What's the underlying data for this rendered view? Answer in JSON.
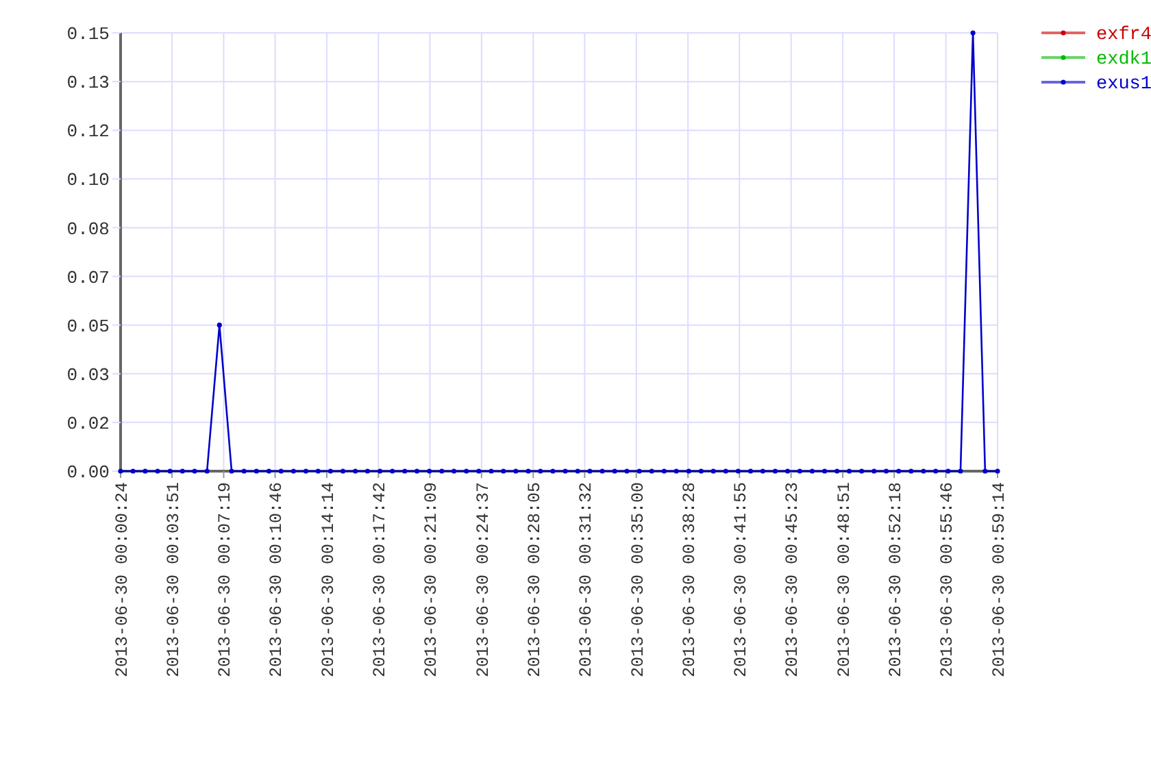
{
  "chart_data": {
    "type": "line",
    "grid": true,
    "legend": "top right",
    "marker": "circle",
    "line_style": "solid",
    "x": [
      "2013-06-30T00:00:24",
      "2013-06-30T00:01:14",
      "2013-06-30T00:02:03",
      "2013-06-30T00:02:53",
      "2013-06-30T00:03:43",
      "2013-06-30T00:04:33",
      "2013-06-30T00:05:22",
      "2013-06-30T00:06:12",
      "2013-06-30T00:07:02",
      "2013-06-30T00:07:51",
      "2013-06-30T00:08:41",
      "2013-06-30T00:09:31",
      "2013-06-30T00:10:21",
      "2013-06-30T00:11:10",
      "2013-06-30T00:12:00",
      "2013-06-30T00:12:50",
      "2013-06-30T00:13:39",
      "2013-06-30T00:14:29",
      "2013-06-30T00:15:19",
      "2013-06-30T00:16:09",
      "2013-06-30T00:16:58",
      "2013-06-30T00:17:48",
      "2013-06-30T00:18:38",
      "2013-06-30T00:19:28",
      "2013-06-30T00:20:17",
      "2013-06-30T00:21:07",
      "2013-06-30T00:21:57",
      "2013-06-30T00:22:46",
      "2013-06-30T00:23:36",
      "2013-06-30T00:24:26",
      "2013-06-30T00:25:16",
      "2013-06-30T00:26:05",
      "2013-06-30T00:26:55",
      "2013-06-30T00:27:45",
      "2013-06-30T00:28:34",
      "2013-06-30T00:29:24",
      "2013-06-30T00:30:14",
      "2013-06-30T00:31:04",
      "2013-06-30T00:31:53",
      "2013-06-30T00:32:43",
      "2013-06-30T00:33:33",
      "2013-06-30T00:34:22",
      "2013-06-30T00:35:12",
      "2013-06-30T00:36:02",
      "2013-06-30T00:36:52",
      "2013-06-30T00:37:41",
      "2013-06-30T00:38:31",
      "2013-06-30T00:39:21",
      "2013-06-30T00:40:10",
      "2013-06-30T00:41:00",
      "2013-06-30T00:41:50",
      "2013-06-30T00:42:40",
      "2013-06-30T00:43:29",
      "2013-06-30T00:44:19",
      "2013-06-30T00:45:09",
      "2013-06-30T00:45:58",
      "2013-06-30T00:46:48",
      "2013-06-30T00:47:38",
      "2013-06-30T00:48:28",
      "2013-06-30T00:49:17",
      "2013-06-30T00:50:07",
      "2013-06-30T00:50:57",
      "2013-06-30T00:51:46",
      "2013-06-30T00:52:36",
      "2013-06-30T00:53:26",
      "2013-06-30T00:54:16",
      "2013-06-30T00:55:05",
      "2013-06-30T00:55:55",
      "2013-06-30T00:56:45",
      "2013-06-30T00:57:35",
      "2013-06-30T00:58:24",
      "2013-06-30T00:59:14"
    ],
    "xlim": [
      "2013-06-30T00:00:24",
      "2013-06-30T00:59:14"
    ],
    "xticks": [
      {
        "value": "2013-06-30T00:00:24",
        "label": "2013-06-30 00:00:24"
      },
      {
        "value": "2013-06-30T00:03:51",
        "label": "2013-06-30 00:03:51"
      },
      {
        "value": "2013-06-30T00:07:19",
        "label": "2013-06-30 00:07:19"
      },
      {
        "value": "2013-06-30T00:10:46",
        "label": "2013-06-30 00:10:46"
      },
      {
        "value": "2013-06-30T00:14:14",
        "label": "2013-06-30 00:14:14"
      },
      {
        "value": "2013-06-30T00:17:42",
        "label": "2013-06-30 00:17:42"
      },
      {
        "value": "2013-06-30T00:21:09",
        "label": "2013-06-30 00:21:09"
      },
      {
        "value": "2013-06-30T00:24:37",
        "label": "2013-06-30 00:24:37"
      },
      {
        "value": "2013-06-30T00:28:05",
        "label": "2013-06-30 00:28:05"
      },
      {
        "value": "2013-06-30T00:31:32",
        "label": "2013-06-30 00:31:32"
      },
      {
        "value": "2013-06-30T00:35:00",
        "label": "2013-06-30 00:35:00"
      },
      {
        "value": "2013-06-30T00:38:28",
        "label": "2013-06-30 00:38:28"
      },
      {
        "value": "2013-06-30T00:41:55",
        "label": "2013-06-30 00:41:55"
      },
      {
        "value": "2013-06-30T00:45:23",
        "label": "2013-06-30 00:45:23"
      },
      {
        "value": "2013-06-30T00:48:51",
        "label": "2013-06-30 00:48:51"
      },
      {
        "value": "2013-06-30T00:52:18",
        "label": "2013-06-30 00:52:18"
      },
      {
        "value": "2013-06-30T00:55:46",
        "label": "2013-06-30 00:55:46"
      },
      {
        "value": "2013-06-30T00:59:14",
        "label": "2013-06-30 00:59:14"
      }
    ],
    "ylim": [
      0,
      0.15
    ],
    "yticks": [
      {
        "value": 0,
        "label": "0.00"
      },
      {
        "value": 0.01667,
        "label": "0.02"
      },
      {
        "value": 0.03333,
        "label": "0.03"
      },
      {
        "value": 0.05,
        "label": "0.05"
      },
      {
        "value": 0.06667,
        "label": "0.07"
      },
      {
        "value": 0.08333,
        "label": "0.08"
      },
      {
        "value": 0.1,
        "label": "0.10"
      },
      {
        "value": 0.11667,
        "label": "0.12"
      },
      {
        "value": 0.13333,
        "label": "0.13"
      },
      {
        "value": 0.15,
        "label": "0.15"
      }
    ],
    "series": [
      {
        "name": "exfr4",
        "color": "#cc0000",
        "values": [
          null,
          null,
          null,
          null,
          null,
          null,
          null,
          null,
          null,
          null,
          null,
          null,
          null,
          null,
          null,
          null,
          null,
          null,
          null,
          null,
          null,
          null,
          null,
          null,
          null,
          null,
          null,
          null,
          null,
          null,
          null,
          null,
          null,
          null,
          null,
          null,
          null,
          null,
          null,
          null,
          null,
          null,
          null,
          null,
          null,
          null,
          null,
          null,
          null,
          null,
          null,
          null,
          null,
          null,
          null,
          null,
          null,
          null,
          null,
          null,
          null,
          null,
          null,
          null,
          null,
          null,
          null,
          null,
          null,
          null,
          null,
          null
        ]
      },
      {
        "name": "exdk1",
        "color": "#00bb00",
        "values": [
          null,
          null,
          null,
          null,
          null,
          null,
          null,
          null,
          null,
          null,
          null,
          null,
          null,
          null,
          null,
          null,
          null,
          null,
          null,
          null,
          null,
          null,
          null,
          null,
          null,
          null,
          null,
          null,
          null,
          null,
          null,
          null,
          null,
          null,
          null,
          null,
          null,
          null,
          null,
          null,
          null,
          null,
          null,
          null,
          null,
          null,
          null,
          null,
          null,
          null,
          null,
          null,
          null,
          null,
          null,
          null,
          null,
          null,
          null,
          null,
          null,
          null,
          null,
          null,
          null,
          null,
          null,
          null,
          null,
          null,
          null,
          null
        ]
      },
      {
        "name": "exus1",
        "color": "#0000cc",
        "values": [
          0,
          0,
          0,
          0,
          0,
          0,
          0,
          0,
          0.05,
          0,
          0,
          0,
          0,
          0,
          0,
          0,
          0,
          0,
          0,
          0,
          0,
          0,
          0,
          0,
          0,
          0,
          0,
          0,
          0,
          0,
          0,
          0,
          0,
          0,
          0,
          0,
          0,
          0,
          0,
          0,
          0,
          0,
          0,
          0,
          0,
          0,
          0,
          0,
          0,
          0,
          0,
          0,
          0,
          0,
          0,
          0,
          0,
          0,
          0,
          0,
          0,
          0,
          0,
          0,
          0,
          0,
          0,
          0,
          0,
          0.15,
          0,
          0
        ]
      }
    ]
  }
}
